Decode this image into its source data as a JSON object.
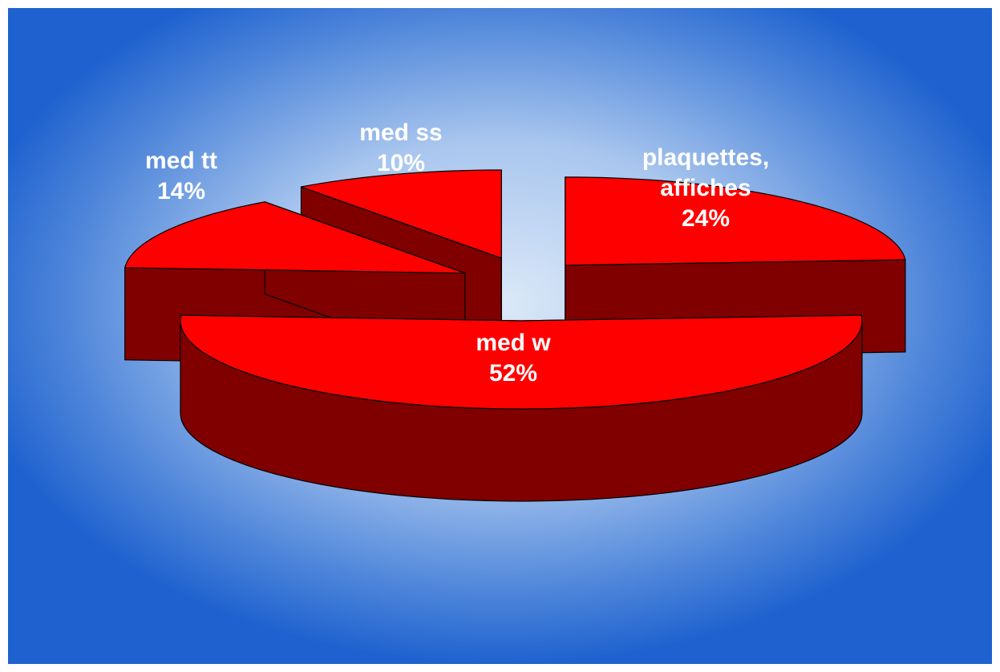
{
  "chart_data": {
    "type": "pie3d",
    "categories": [
      "med w",
      "med tt",
      "med ss",
      "plaquettes, affiches"
    ],
    "values": [
      52,
      14,
      10,
      24
    ],
    "value_labels": [
      "52%",
      "14%",
      "10%",
      "24%"
    ],
    "color": "#ff0000",
    "side_color": "#800000"
  }
}
